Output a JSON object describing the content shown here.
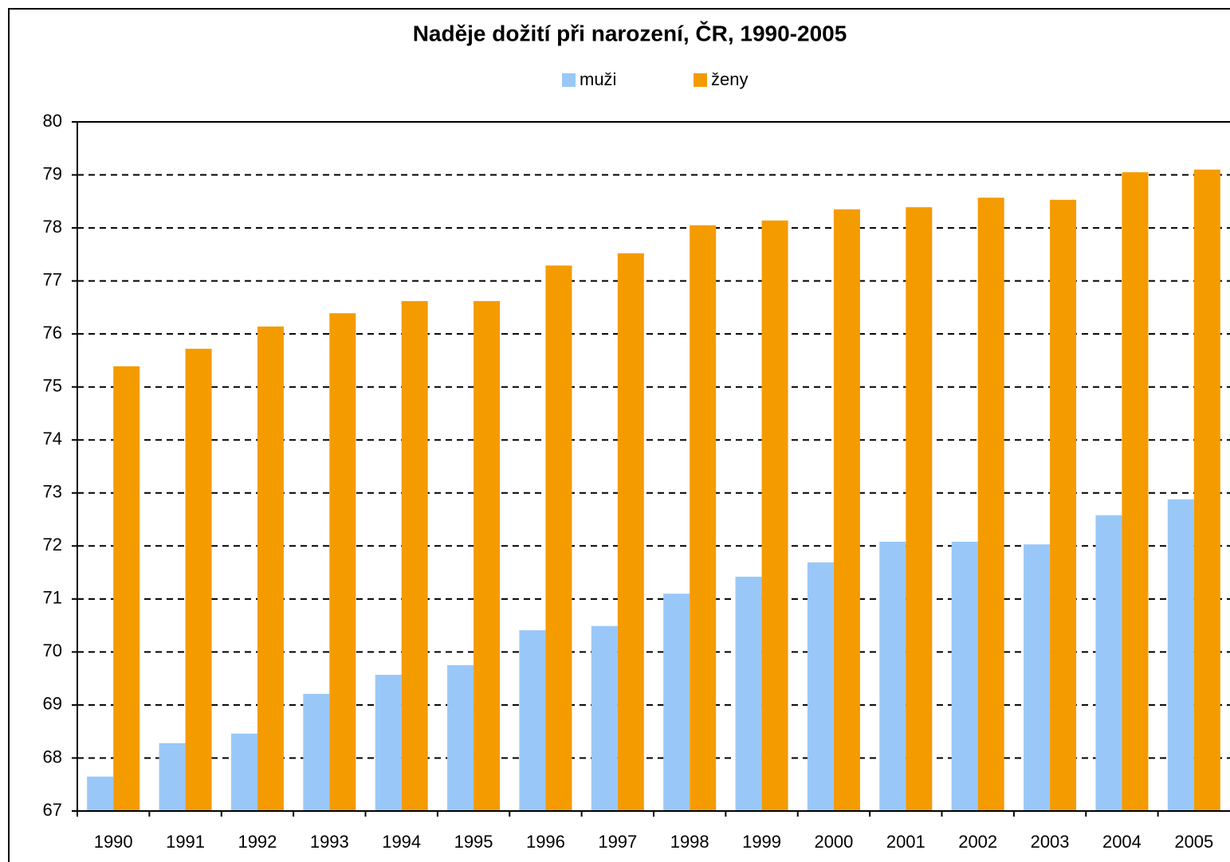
{
  "chart_data": {
    "type": "bar",
    "title": "Naděje dožití při narození, ČR, 1990-2005",
    "categories": [
      "1990",
      "1991",
      "1992",
      "1993",
      "1994",
      "1995",
      "1996",
      "1997",
      "1998",
      "1999",
      "2000",
      "2001",
      "2002",
      "2003",
      "2004",
      "2005"
    ],
    "series": [
      {
        "name": "muži",
        "color": "#99c8f8",
        "values": [
          67.65,
          68.28,
          68.46,
          69.21,
          69.57,
          69.75,
          70.41,
          70.49,
          71.1,
          71.42,
          71.69,
          72.08,
          72.08,
          72.03,
          72.58,
          72.88
        ]
      },
      {
        "name": "ženy",
        "color": "#f49b00",
        "values": [
          75.39,
          75.72,
          76.14,
          76.39,
          76.62,
          76.62,
          77.29,
          77.52,
          78.05,
          78.14,
          78.35,
          78.39,
          78.57,
          78.53,
          79.05,
          79.1
        ]
      }
    ],
    "ylim": [
      67,
      80
    ],
    "yticks": [
      67,
      68,
      69,
      70,
      71,
      72,
      73,
      74,
      75,
      76,
      77,
      78,
      79,
      80
    ],
    "grid": true,
    "legend": "top"
  }
}
